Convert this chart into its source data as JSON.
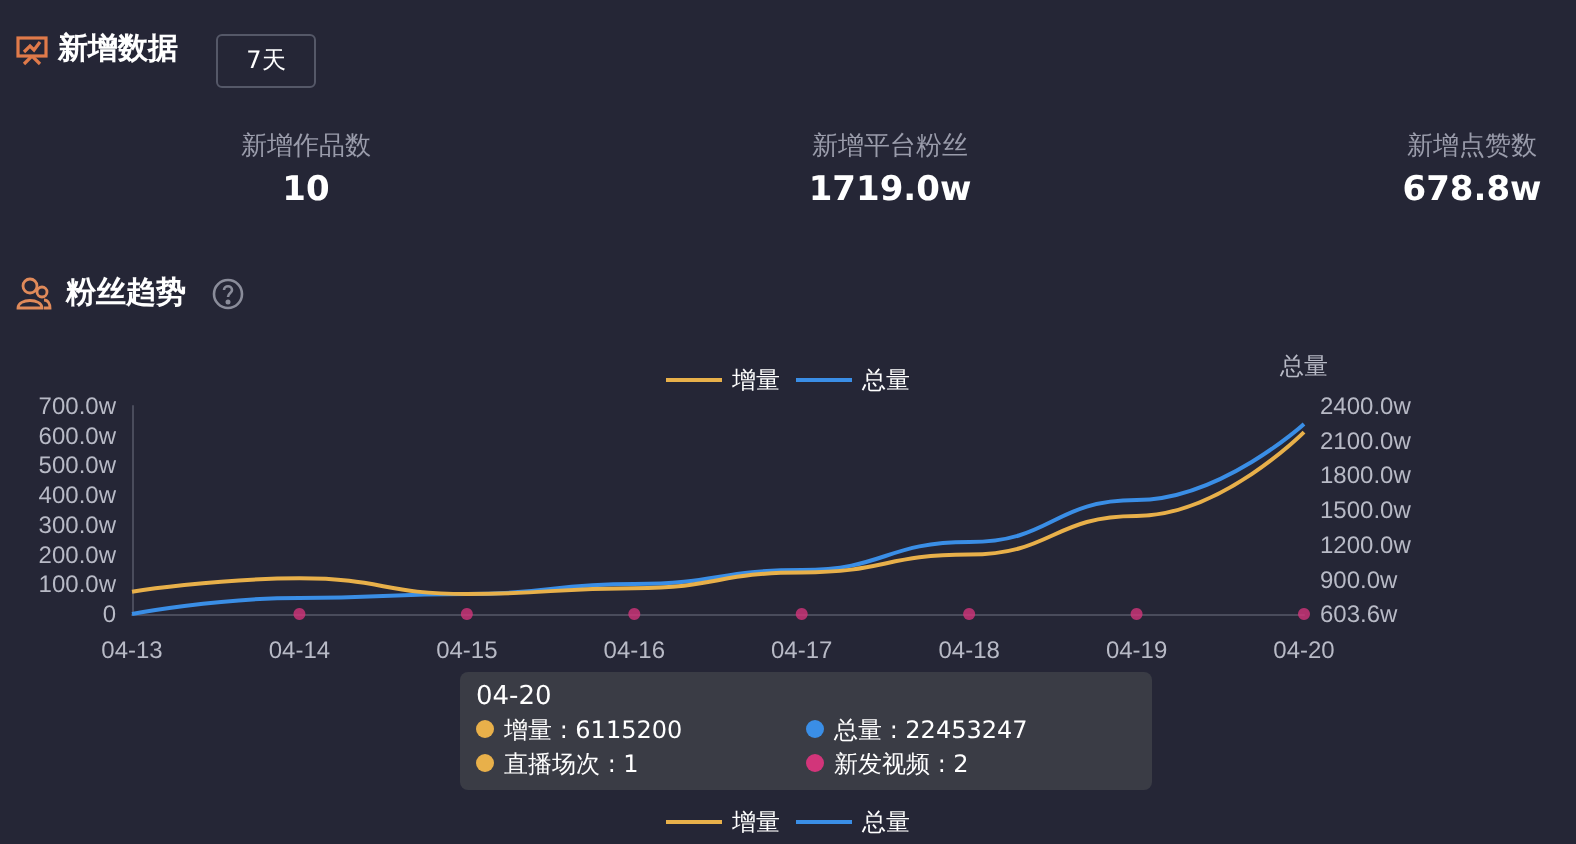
{
  "chart_data": {
    "type": "line",
    "title": "粉丝趋势",
    "y2label": "总量",
    "categories": [
      "04-13",
      "04-14",
      "04-15",
      "04-16",
      "04-17",
      "04-18",
      "04-19",
      "04-20"
    ],
    "series": [
      {
        "name": "增量",
        "color": "#e8b04a",
        "values": [
          75,
          120,
          67,
          87,
          140,
          200,
          330,
          612
        ]
      },
      {
        "name": "总量",
        "color": "#3a8ee6",
        "axis": "y2",
        "values": [
          604,
          742,
          776,
          863,
          984,
          1225,
          1588,
          2245
        ]
      },
      {
        "type": "scatter",
        "color": "#d2357a",
        "marker": "circle",
        "values": [
          null,
          0,
          0,
          0,
          0,
          0,
          0,
          0
        ]
      }
    ],
    "ylim": [
      0,
      700
    ],
    "yticks": [
      0,
      {
        "value": 100,
        "label": "100.0w"
      },
      {
        "value": 200,
        "label": "200.0w"
      },
      {
        "value": 300,
        "label": "300.0w"
      },
      {
        "value": 400,
        "label": "400.0w"
      },
      {
        "value": 500,
        "label": "500.0w"
      },
      {
        "value": 600,
        "label": "600.0w"
      },
      {
        "value": 700,
        "label": "700.0w"
      }
    ],
    "y2lim": [
      603.6,
      2400
    ],
    "y2ticks": [
      {
        "value": 603.6,
        "label": "603.6w"
      },
      {
        "value": 900,
        "label": "900.0w"
      },
      {
        "value": 1200,
        "label": "1200.0w"
      },
      {
        "value": 1500,
        "label": "1500.0w"
      },
      {
        "value": 1800,
        "label": "1800.0w"
      },
      {
        "value": 2100,
        "label": "2100.0w"
      },
      {
        "value": 2400,
        "label": "2400.0w"
      }
    ],
    "grid": false,
    "legend": "top",
    "marker": "none",
    "line_style": "solid",
    "annotations": [
      "新增数据",
      "7天",
      "新增作品数",
      "10",
      "新增平台粉丝",
      "1719.0w",
      "新增点赞数",
      "678.8w",
      "04-20",
      "增量 : 6115200",
      "总量 : 22453247",
      "直播场次 : 1",
      "新发视频 : 2"
    ]
  }
}
